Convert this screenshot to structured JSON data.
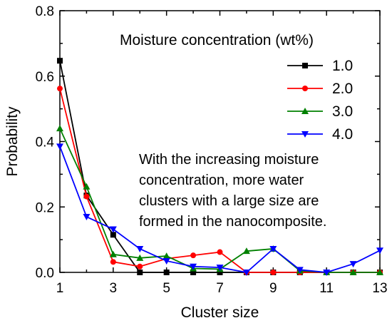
{
  "chart_data": {
    "type": "line",
    "xlabel": "Cluster size",
    "ylabel": "Probability",
    "xlim": [
      1,
      13
    ],
    "ylim": [
      0,
      0.8
    ],
    "x_ticks": [
      "1",
      "3",
      "5",
      "7",
      "9",
      "11",
      "13"
    ],
    "y_ticks": [
      "0.0",
      "0.2",
      "0.4",
      "0.6",
      "0.8"
    ],
    "legend_title": "Moisture concentration (wt%)",
    "legend_position": "top-right",
    "grid": false,
    "annotation": [
      "With the increasing moisture",
      "concentration, more water",
      "clusters with a large size are",
      "formed in the nanocomposite."
    ],
    "x": [
      1,
      2,
      3,
      4,
      5,
      6,
      7,
      8,
      9,
      10,
      11,
      12,
      13
    ],
    "series": [
      {
        "name": "1.0",
        "color": "#000000",
        "marker": "square",
        "values": [
          0.647,
          0.235,
          0.115,
          0.0,
          0.0,
          0.0,
          0.0,
          0.0,
          0.0,
          0.0,
          0.0,
          0.0,
          0.0
        ]
      },
      {
        "name": "2.0",
        "color": "#ff0000",
        "marker": "circle",
        "values": [
          0.562,
          0.232,
          0.032,
          0.018,
          0.042,
          0.052,
          0.062,
          0.0,
          0.0,
          0.0,
          0.0,
          0.0,
          0.0
        ]
      },
      {
        "name": "3.0",
        "color": "#008000",
        "marker": "triangle-up",
        "values": [
          0.44,
          0.262,
          0.055,
          0.044,
          0.05,
          0.012,
          0.01,
          0.065,
          0.072,
          0.005,
          0.0,
          0.0,
          0.0
        ]
      },
      {
        "name": "4.0",
        "color": "#0000ff",
        "marker": "triangle-down",
        "values": [
          0.385,
          0.17,
          0.132,
          0.072,
          0.035,
          0.018,
          0.015,
          0.0,
          0.072,
          0.008,
          0.0,
          0.026,
          0.067
        ]
      }
    ]
  }
}
